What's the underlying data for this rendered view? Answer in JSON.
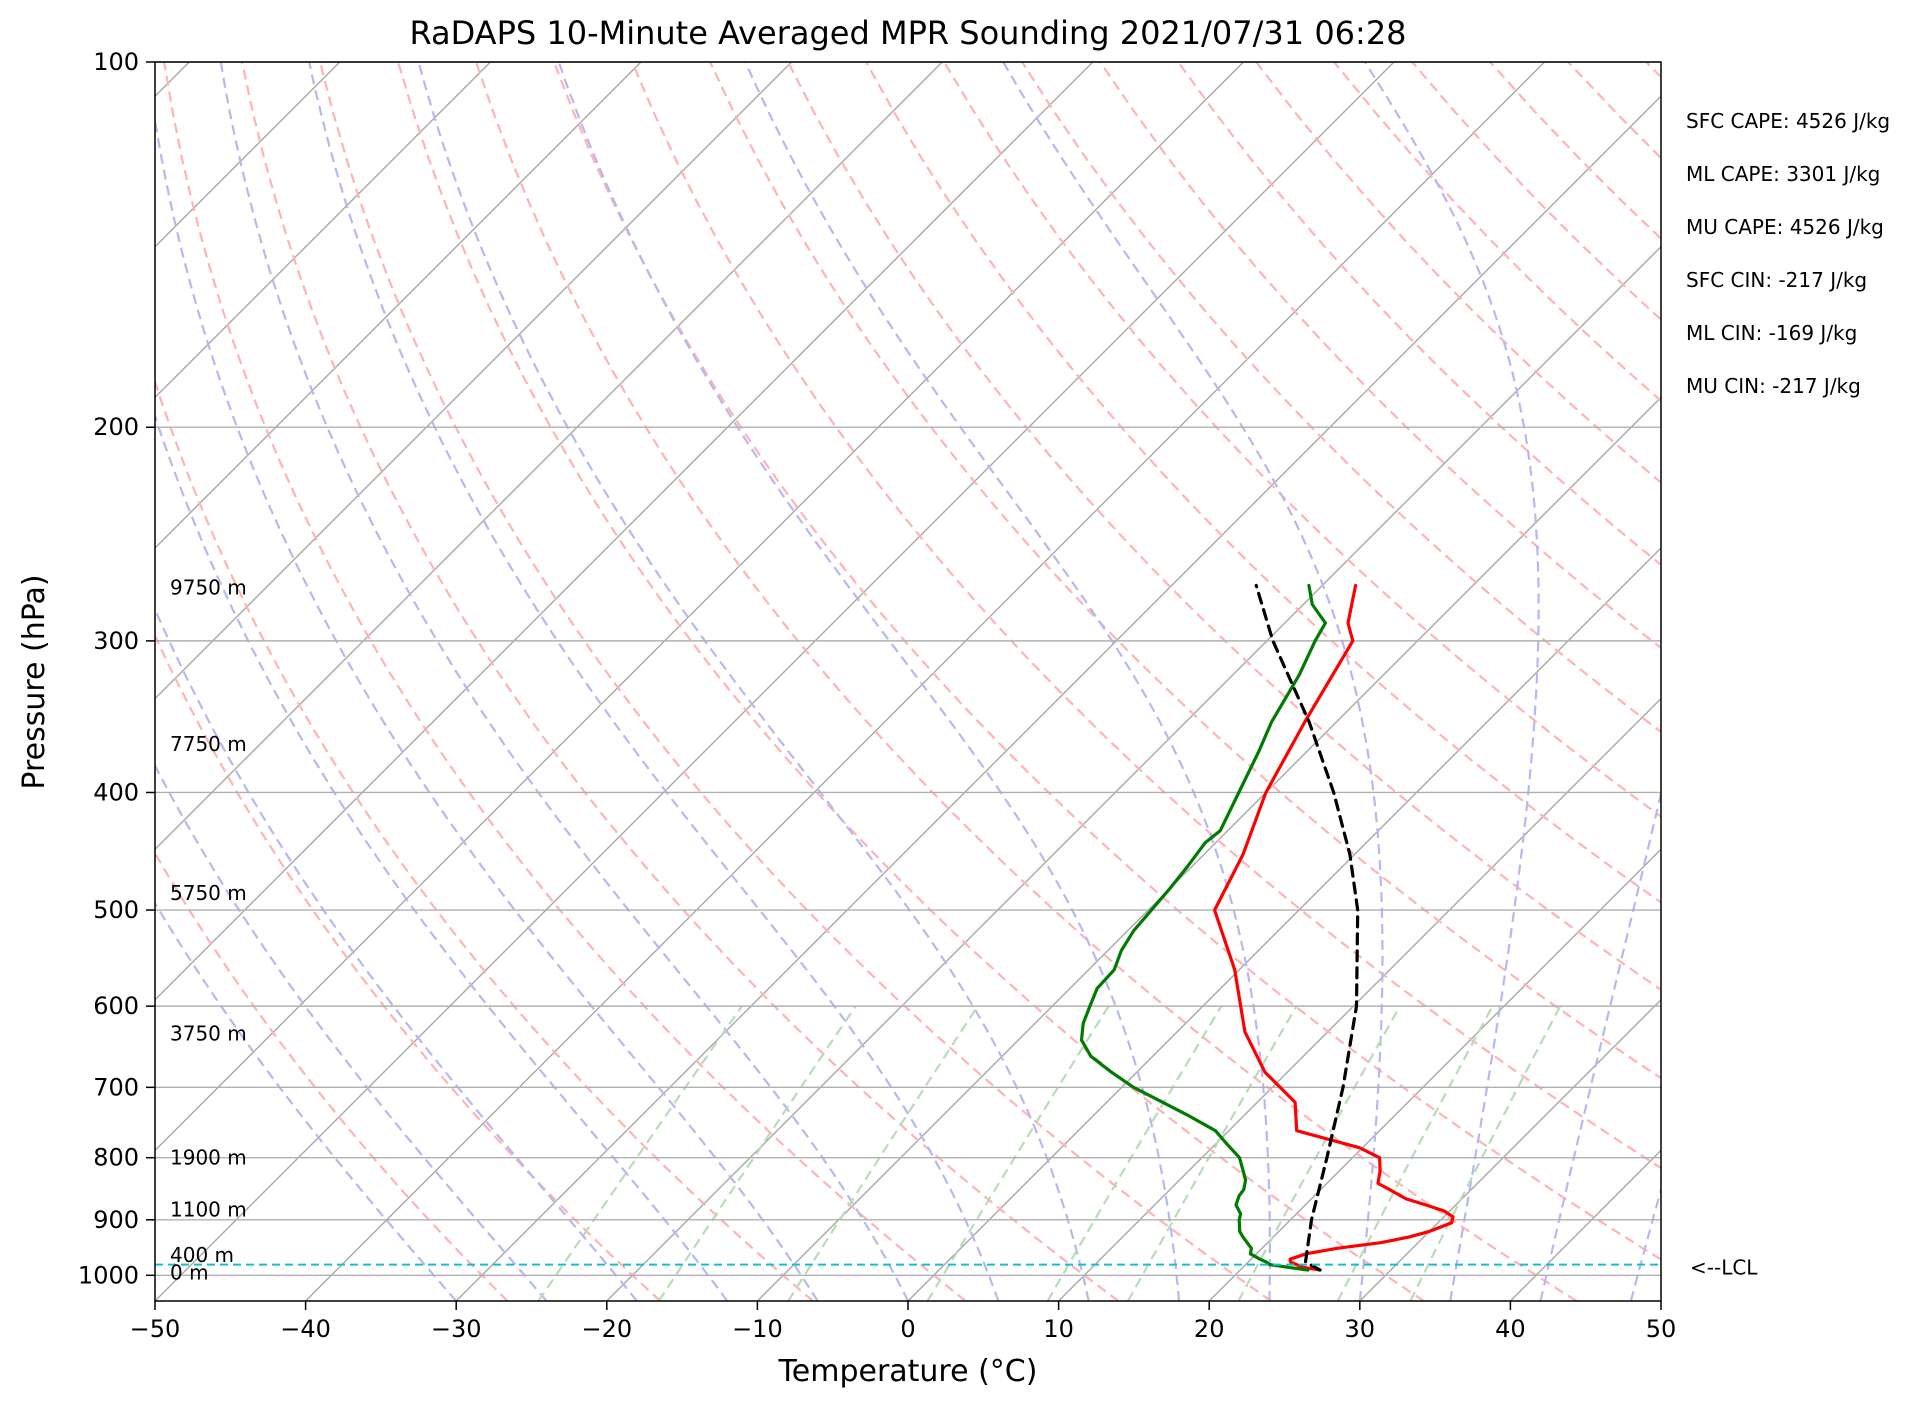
{
  "chart_data": {
    "type": "line",
    "subtype": "skew-t log-p sounding",
    "title": "RaDAPS 10-Minute Averaged MPR Sounding 2021/07/31 06:28",
    "xlabel": "Temperature (°C)",
    "ylabel": "Pressure (hPa)",
    "xlim": [
      -50,
      50
    ],
    "ylim": [
      1050,
      100
    ],
    "y_scale": "log",
    "x_ticks": [
      -50,
      -40,
      -30,
      -20,
      -10,
      0,
      10,
      20,
      30,
      40,
      50
    ],
    "x_tick_labels": [
      "−50",
      "−40",
      "−30",
      "−20",
      "−10",
      "0",
      "10",
      "20",
      "30",
      "40",
      "50"
    ],
    "y_ticks": [
      1000,
      900,
      800,
      700,
      600,
      500,
      400,
      300,
      200,
      100
    ],
    "y_tick_labels": [
      "1000",
      "900",
      "800",
      "700",
      "600",
      "500",
      "400",
      "300",
      "200",
      "100"
    ],
    "grid": true,
    "series": [
      {
        "key": "temperature",
        "color": "#ff0000",
        "pressure": [
          990,
          985,
          975,
          970,
          960,
          950,
          940,
          930,
          920,
          905,
          895,
          885,
          875,
          865,
          850,
          840,
          820,
          800,
          785,
          760,
          720,
          680,
          630,
          560,
          500,
          450,
          400,
          350,
          300,
          290,
          270
        ],
        "temp": [
          25.3,
          24.0,
          22.8,
          22.6,
          23.3,
          25.0,
          27.5,
          29.0,
          30.0,
          30.9,
          30.6,
          29.6,
          28.0,
          26.3,
          24.6,
          23.4,
          22.7,
          21.8,
          19.8,
          14.5,
          12.5,
          8.5,
          4.5,
          -0.3,
          -5.6,
          -7.4,
          -10.0,
          -12.1,
          -14.3,
          -15.8,
          -17.8
        ]
      },
      {
        "key": "dewpoint",
        "color": "#007a00",
        "pressure": [
          990,
          985,
          980,
          975,
          970,
          960,
          950,
          930,
          920,
          900,
          890,
          875,
          860,
          850,
          835,
          820,
          800,
          780,
          760,
          740,
          720,
          700,
          680,
          660,
          640,
          620,
          600,
          580,
          560,
          540,
          520,
          500,
          480,
          460,
          440,
          430,
          400,
          370,
          350,
          320,
          300,
          290,
          280,
          270
        ],
        "temp": [
          24.5,
          23.0,
          21.6,
          21.2,
          20.6,
          19.6,
          19.3,
          18.0,
          17.4,
          16.6,
          16.3,
          15.4,
          15.0,
          14.9,
          14.4,
          13.6,
          12.5,
          10.8,
          9.1,
          6.5,
          3.7,
          0.8,
          -1.7,
          -4.1,
          -5.8,
          -6.8,
          -7.5,
          -8.2,
          -8.3,
          -9.1,
          -9.6,
          -9.8,
          -10.0,
          -10.3,
          -10.7,
          -10.5,
          -11.8,
          -13.2,
          -14.3,
          -15.6,
          -16.8,
          -17.3,
          -19.4,
          -20.9
        ]
      },
      {
        "key": "parcel",
        "color": "#000000",
        "dashed": true,
        "pressure": [
          990,
          975,
          900,
          800,
          700,
          600,
          500,
          450,
          400,
          350,
          300,
          270
        ],
        "temp": [
          25.3,
          23.8,
          21.4,
          18.3,
          14.7,
          10.2,
          3.9,
          -0.3,
          -5.5,
          -11.8,
          -19.6,
          -24.4
        ]
      }
    ],
    "height_labels": [
      {
        "text": "9750 m",
        "pressure": 271
      },
      {
        "text": "7750 m",
        "pressure": 365
      },
      {
        "text": "5750 m",
        "pressure": 484
      },
      {
        "text": "3750 m",
        "pressure": 632
      },
      {
        "text": "1900 m",
        "pressure": 800
      },
      {
        "text": "1100 m",
        "pressure": 883
      },
      {
        "text": "400 m",
        "pressure": 962
      },
      {
        "text": "0 m",
        "pressure": 995
      }
    ],
    "lcl": {
      "label": "<--LCL",
      "pressure": 980,
      "color": "#17becf"
    },
    "indices": [
      {
        "label": "SFC CAPE: 4526 J/kg"
      },
      {
        "label": "ML CAPE: 3301 J/kg"
      },
      {
        "label": "MU CAPE: 4526 J/kg"
      },
      {
        "label": "SFC CIN: -217 J/kg"
      },
      {
        "label": "ML CIN: -169 J/kg"
      },
      {
        "label": "MU CIN: -217 J/kg"
      }
    ],
    "background_lines": {
      "isotherm_color": "#a8a8a8",
      "dry_adiabat_color": "#ffb3b3",
      "moist_adiabat_color": "#b8b8f0",
      "mixing_ratio_color": "#b8dcb8"
    }
  }
}
